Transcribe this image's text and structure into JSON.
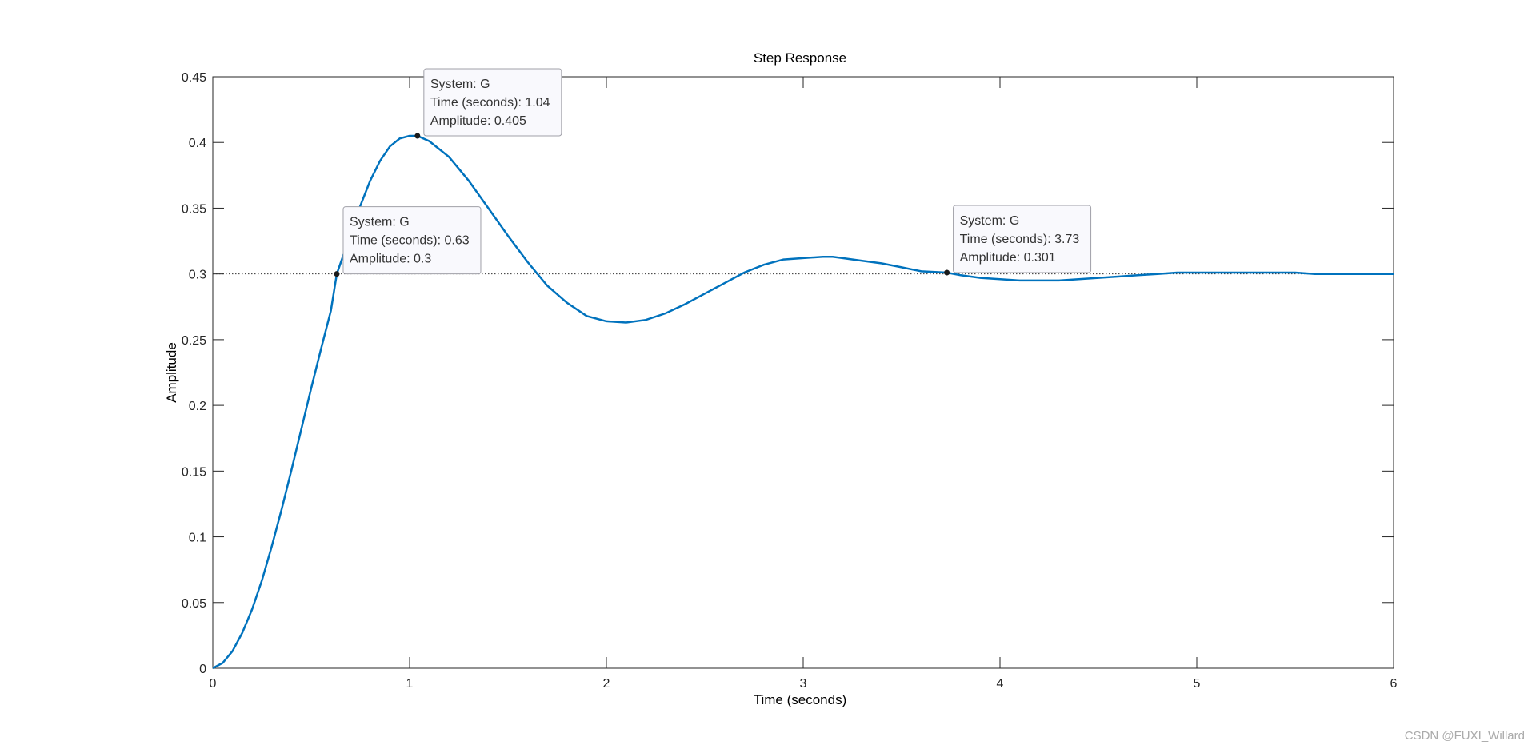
{
  "chart_data": {
    "type": "line",
    "title": "Step Response",
    "xlabel": "Time (seconds)",
    "ylabel": "Amplitude",
    "xlim": [
      0,
      6
    ],
    "ylim": [
      0,
      0.45
    ],
    "x_ticks": [
      "0",
      "1",
      "2",
      "3",
      "4",
      "5",
      "6"
    ],
    "y_ticks": [
      "0",
      "0.05",
      "0.1",
      "0.15",
      "0.2",
      "0.25",
      "0.3",
      "0.35",
      "0.4",
      "0.45"
    ],
    "grid": false,
    "series": [
      {
        "color": "#0072BD",
        "x": [
          0,
          0.05,
          0.1,
          0.15,
          0.2,
          0.25,
          0.3,
          0.35,
          0.4,
          0.45,
          0.5,
          0.55,
          0.6,
          0.63,
          0.7,
          0.75,
          0.8,
          0.85,
          0.9,
          0.95,
          1.0,
          1.04,
          1.1,
          1.2,
          1.3,
          1.4,
          1.5,
          1.6,
          1.7,
          1.8,
          1.9,
          2.0,
          2.1,
          2.2,
          2.3,
          2.4,
          2.5,
          2.6,
          2.7,
          2.8,
          2.9,
          3.0,
          3.1,
          3.15,
          3.2,
          3.3,
          3.4,
          3.5,
          3.6,
          3.73,
          3.8,
          3.9,
          4.0,
          4.1,
          4.2,
          4.3,
          4.4,
          4.5,
          4.6,
          4.7,
          4.8,
          4.9,
          5.0,
          5.1,
          5.2,
          5.3,
          5.4,
          5.5,
          5.6,
          5.7,
          5.8,
          5.9,
          6.0
        ],
        "y": [
          0,
          0.004,
          0.013,
          0.027,
          0.045,
          0.067,
          0.093,
          0.121,
          0.151,
          0.182,
          0.213,
          0.243,
          0.272,
          0.3,
          0.33,
          0.352,
          0.371,
          0.386,
          0.397,
          0.403,
          0.405,
          0.405,
          0.401,
          0.389,
          0.371,
          0.35,
          0.329,
          0.309,
          0.291,
          0.278,
          0.268,
          0.264,
          0.263,
          0.265,
          0.27,
          0.277,
          0.285,
          0.293,
          0.301,
          0.307,
          0.311,
          0.312,
          0.313,
          0.313,
          0.312,
          0.31,
          0.308,
          0.305,
          0.302,
          0.301,
          0.299,
          0.297,
          0.296,
          0.295,
          0.295,
          0.295,
          0.296,
          0.297,
          0.298,
          0.299,
          0.3,
          0.301,
          0.301,
          0.301,
          0.301,
          0.301,
          0.301,
          0.301,
          0.3,
          0.3,
          0.3,
          0.3,
          0.3
        ]
      }
    ],
    "reference_line": {
      "y": 0.3,
      "style": "dotted",
      "color": "#333333"
    },
    "datatips": [
      {
        "x": 0.63,
        "y": 0.3,
        "lines": [
          "System: G",
          "Time (seconds): 0.63",
          "Amplitude: 0.3"
        ]
      },
      {
        "x": 1.04,
        "y": 0.405,
        "lines": [
          "System: G",
          "Time (seconds): 1.04",
          "Amplitude: 0.405"
        ]
      },
      {
        "x": 3.73,
        "y": 0.301,
        "lines": [
          "System: G",
          "Time (seconds): 3.73",
          "Amplitude: 0.301"
        ]
      }
    ]
  },
  "watermark": "CSDN @FUXI_Willard"
}
